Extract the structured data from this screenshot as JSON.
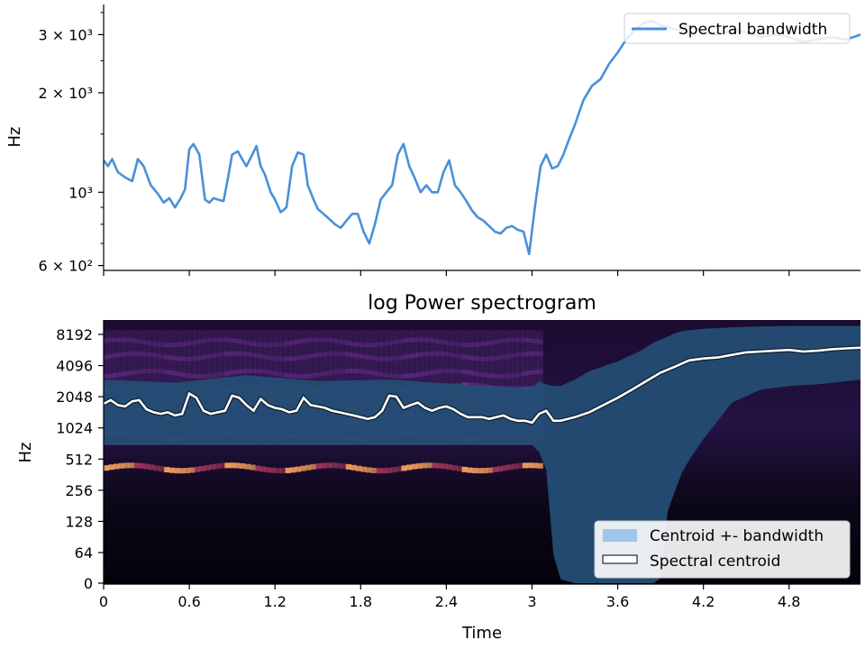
{
  "chart_data": [
    {
      "type": "line",
      "title": "",
      "ylabel": "Hz",
      "xlabel": "",
      "yscale": "log",
      "ylim": [
        580,
        3700
      ],
      "xlim": [
        0,
        5.3
      ],
      "grid": false,
      "legend": {
        "placement": "upper right",
        "entries": [
          "Spectral bandwidth"
        ]
      },
      "y_ticks": [
        {
          "value": 600,
          "label": "6 × 10²"
        },
        {
          "value": 1000,
          "label": "10³"
        },
        {
          "value": 2000,
          "label": "2 × 10³"
        },
        {
          "value": 3000,
          "label": "3 × 10³"
        }
      ],
      "x_ticks_unlabeled": [
        0,
        0.6,
        1.2,
        1.8,
        2.4,
        3.0,
        3.6,
        4.2,
        4.8
      ],
      "series": [
        {
          "name": "Spectral bandwidth",
          "color": "#4a90d9",
          "x": [
            0,
            0.03,
            0.06,
            0.1,
            0.15,
            0.2,
            0.24,
            0.28,
            0.33,
            0.38,
            0.42,
            0.46,
            0.5,
            0.54,
            0.57,
            0.6,
            0.63,
            0.67,
            0.71,
            0.74,
            0.77,
            0.8,
            0.84,
            0.87,
            0.9,
            0.94,
            0.97,
            1.0,
            1.03,
            1.07,
            1.1,
            1.13,
            1.17,
            1.2,
            1.24,
            1.28,
            1.32,
            1.36,
            1.4,
            1.43,
            1.47,
            1.5,
            1.54,
            1.58,
            1.62,
            1.66,
            1.7,
            1.74,
            1.78,
            1.82,
            1.86,
            1.9,
            1.94,
            1.98,
            2.02,
            2.06,
            2.1,
            2.14,
            2.18,
            2.22,
            2.26,
            2.3,
            2.34,
            2.38,
            2.42,
            2.46,
            2.5,
            2.54,
            2.58,
            2.62,
            2.66,
            2.7,
            2.74,
            2.78,
            2.82,
            2.86,
            2.9,
            2.94,
            2.98,
            3.02,
            3.06,
            3.1,
            3.14,
            3.18,
            3.22,
            3.26,
            3.3,
            3.36,
            3.42,
            3.48,
            3.54,
            3.6,
            3.66,
            3.72,
            3.78,
            3.84,
            3.9,
            3.96,
            4.02,
            4.1,
            4.2,
            4.3,
            4.4,
            4.5,
            4.6,
            4.7,
            4.8,
            4.9,
            5.0,
            5.1,
            5.2,
            5.3
          ],
          "values": [
            1250,
            1200,
            1260,
            1150,
            1110,
            1080,
            1260,
            1200,
            1050,
            990,
            930,
            960,
            900,
            960,
            1020,
            1350,
            1400,
            1300,
            950,
            930,
            960,
            950,
            940,
            1100,
            1300,
            1330,
            1260,
            1200,
            1270,
            1380,
            1200,
            1130,
            1000,
            950,
            870,
            900,
            1200,
            1320,
            1300,
            1050,
            950,
            890,
            860,
            830,
            800,
            780,
            820,
            860,
            860,
            760,
            700,
            800,
            950,
            1000,
            1050,
            1300,
            1400,
            1200,
            1100,
            1000,
            1050,
            1000,
            1000,
            1150,
            1250,
            1050,
            1000,
            940,
            880,
            840,
            820,
            790,
            760,
            750,
            780,
            790,
            770,
            760,
            650,
            900,
            1200,
            1300,
            1180,
            1200,
            1300,
            1450,
            1600,
            1900,
            2100,
            2200,
            2450,
            2650,
            2900,
            3100,
            3250,
            3300,
            3200,
            3150,
            3100,
            3200,
            3050,
            3000,
            3100,
            3050,
            2950,
            3000,
            2950,
            2850,
            2900,
            2950,
            2900,
            3000
          ]
        }
      ]
    },
    {
      "type": "heatmap",
      "title": "log Power spectrogram",
      "xlabel": "Time",
      "ylabel": "Hz",
      "yscale": "log2",
      "xlim": [
        0,
        5.3
      ],
      "x_ticks": [
        "0",
        "0.6",
        "1.2",
        "1.8",
        "2.4",
        "3",
        "3.6",
        "4.2",
        "4.8"
      ],
      "x_tick_values": [
        0,
        0.6,
        1.2,
        1.8,
        2.4,
        3.0,
        3.6,
        4.2,
        4.8
      ],
      "y_ticks": [
        "0",
        "64",
        "128",
        "256",
        "512",
        "1024",
        "2048",
        "4096",
        "8192"
      ],
      "y_tick_values": [
        0,
        64,
        128,
        256,
        512,
        1024,
        2048,
        4096,
        8192
      ],
      "legend": {
        "placement": "lower right",
        "entries": [
          "Centroid +- bandwidth",
          "Spectral centroid"
        ]
      },
      "colors": {
        "band_fill": "#9fc5ea",
        "band_fill_rendered": "#244d74",
        "centroid_line": "#ffffff",
        "colormap": "magma"
      },
      "series": [
        {
          "name": "Spectral centroid",
          "x": [
            0,
            0.05,
            0.1,
            0.15,
            0.2,
            0.25,
            0.3,
            0.35,
            0.4,
            0.45,
            0.5,
            0.55,
            0.6,
            0.65,
            0.7,
            0.75,
            0.8,
            0.85,
            0.9,
            0.95,
            1.0,
            1.05,
            1.1,
            1.15,
            1.2,
            1.25,
            1.3,
            1.35,
            1.4,
            1.45,
            1.5,
            1.55,
            1.6,
            1.65,
            1.7,
            1.75,
            1.8,
            1.85,
            1.9,
            1.95,
            2.0,
            2.05,
            2.1,
            2.15,
            2.2,
            2.25,
            2.3,
            2.35,
            2.4,
            2.45,
            2.5,
            2.55,
            2.6,
            2.65,
            2.7,
            2.75,
            2.8,
            2.85,
            2.9,
            2.95,
            3.0,
            3.05,
            3.1,
            3.15,
            3.2,
            3.25,
            3.3,
            3.4,
            3.5,
            3.6,
            3.7,
            3.8,
            3.9,
            4.0,
            4.1,
            4.2,
            4.3,
            4.4,
            4.5,
            4.6,
            4.7,
            4.8,
            4.9,
            5.0,
            5.1,
            5.2,
            5.3
          ],
          "values": [
            1750,
            1900,
            1700,
            1650,
            1850,
            1900,
            1550,
            1450,
            1400,
            1450,
            1350,
            1400,
            2200,
            2000,
            1500,
            1400,
            1450,
            1500,
            2100,
            2000,
            1700,
            1500,
            1950,
            1700,
            1600,
            1550,
            1450,
            1500,
            2000,
            1700,
            1650,
            1600,
            1500,
            1450,
            1400,
            1350,
            1300,
            1250,
            1300,
            1500,
            2100,
            2050,
            1600,
            1700,
            1800,
            1600,
            1500,
            1600,
            1650,
            1550,
            1400,
            1300,
            1300,
            1300,
            1250,
            1300,
            1350,
            1250,
            1200,
            1200,
            1150,
            1400,
            1500,
            1200,
            1200,
            1250,
            1300,
            1450,
            1700,
            2000,
            2400,
            2900,
            3500,
            4000,
            4600,
            4800,
            4900,
            5200,
            5500,
            5600,
            5700,
            5800,
            5600,
            5700,
            5900,
            6000,
            6100
          ]
        },
        {
          "name": "Centroid +- bandwidth",
          "x": [
            0,
            0.5,
            1.0,
            1.5,
            2.0,
            2.5,
            2.9,
            3.0,
            3.05,
            3.1,
            3.15,
            3.2,
            3.3,
            3.4,
            3.6,
            3.75,
            3.85,
            3.9,
            3.95,
            4.0,
            4.05,
            4.1,
            4.2,
            4.4,
            4.6,
            4.8,
            5.0,
            5.3
          ],
          "upper": [
            3000,
            2800,
            3300,
            2900,
            3000,
            2700,
            2500,
            2500,
            2900,
            2700,
            2600,
            2600,
            3000,
            3600,
            4500,
            5600,
            6800,
            7300,
            7800,
            8400,
            8800,
            9000,
            9300,
            9600,
            9800,
            9900,
            9900,
            9900
          ],
          "lower": [
            700,
            700,
            700,
            700,
            700,
            700,
            700,
            700,
            600,
            400,
            60,
            8,
            0,
            0,
            0,
            0,
            0,
            10,
            160,
            250,
            380,
            500,
            800,
            1800,
            2400,
            2600,
            2700,
            3000
          ]
        }
      ]
    }
  ]
}
